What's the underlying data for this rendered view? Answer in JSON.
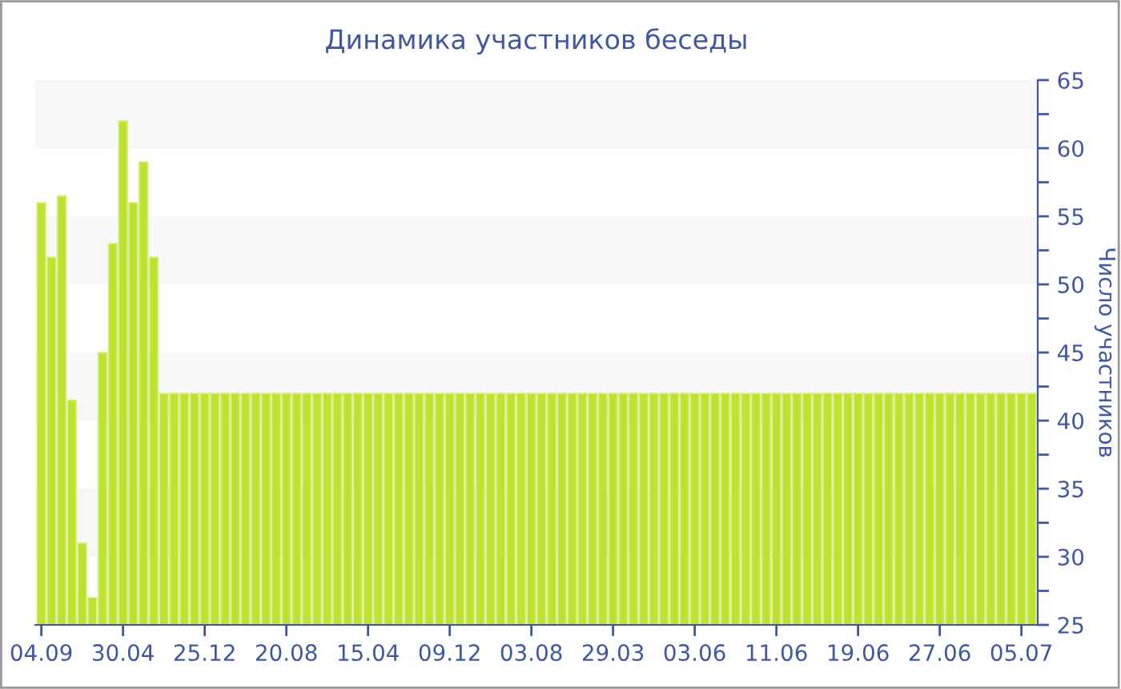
{
  "chart_data": {
    "type": "bar",
    "title": "Динамика участников беседы",
    "ylabel": "Число участников",
    "categories": [
      "04.09",
      null,
      null,
      null,
      null,
      null,
      null,
      null,
      "30.04",
      null,
      null,
      null,
      null,
      null,
      null,
      null,
      "25.12",
      null,
      null,
      null,
      null,
      null,
      null,
      null,
      "20.08",
      null,
      null,
      null,
      null,
      null,
      null,
      null,
      "15.04",
      null,
      null,
      null,
      null,
      null,
      null,
      null,
      "09.12",
      null,
      null,
      null,
      null,
      null,
      null,
      null,
      "03.08",
      null,
      null,
      null,
      null,
      null,
      null,
      null,
      "29.03",
      null,
      null,
      null,
      null,
      null,
      null,
      null,
      "03.06",
      null,
      null,
      null,
      null,
      null,
      null,
      null,
      "11.06",
      null,
      null,
      null,
      null,
      null,
      null,
      null,
      "19.06",
      null,
      null,
      null,
      null,
      null,
      null,
      null,
      "27.06",
      null,
      null,
      null,
      null,
      null,
      null,
      null,
      "05.07",
      null
    ],
    "values": [
      56,
      52,
      56.5,
      41.5,
      31,
      27,
      45,
      53,
      62,
      56,
      59,
      52,
      42,
      42,
      42,
      42,
      42,
      42,
      42,
      42,
      42,
      42,
      42,
      42,
      42,
      42,
      42,
      42,
      42,
      42,
      42,
      42,
      42,
      42,
      42,
      42,
      42,
      42,
      42,
      42,
      42,
      42,
      42,
      42,
      42,
      42,
      42,
      42,
      42,
      42,
      42,
      42,
      42,
      42,
      42,
      42,
      42,
      42,
      42,
      42,
      42,
      42,
      42,
      42,
      42,
      42,
      42,
      42,
      42,
      42,
      42,
      42,
      42,
      42,
      42,
      42,
      42,
      42,
      42,
      42,
      42,
      42,
      42,
      42,
      42,
      42,
      42,
      42,
      42,
      42,
      42,
      42,
      42,
      42,
      42,
      42,
      42,
      42
    ],
    "color": "#bde22f",
    "ylim": [
      25,
      65
    ],
    "yticks": [
      25,
      {
        "value": 27.5,
        "label": null
      },
      30,
      {
        "value": 32.5,
        "label": null
      },
      35,
      {
        "value": 37.5,
        "label": null
      },
      40,
      {
        "value": 42.5,
        "label": null
      },
      45,
      {
        "value": 47.5,
        "label": null
      },
      50,
      {
        "value": 52.5,
        "label": null
      },
      55,
      {
        "value": 57.5,
        "label": null
      },
      60,
      {
        "value": 62.5,
        "label": null
      },
      65
    ],
    "bands": [
      {
        "axis": "y",
        "from": 30,
        "to": 35,
        "color": "#f7f7f7"
      },
      {
        "axis": "y",
        "from": 40,
        "to": 45,
        "color": "#f7f7f7"
      },
      {
        "axis": "y",
        "from": 50,
        "to": 55,
        "color": "#f7f7f7"
      },
      {
        "axis": "y",
        "from": 60,
        "to": 65,
        "color": "#f7f7f7"
      }
    ],
    "grid": false,
    "legend": false
  }
}
